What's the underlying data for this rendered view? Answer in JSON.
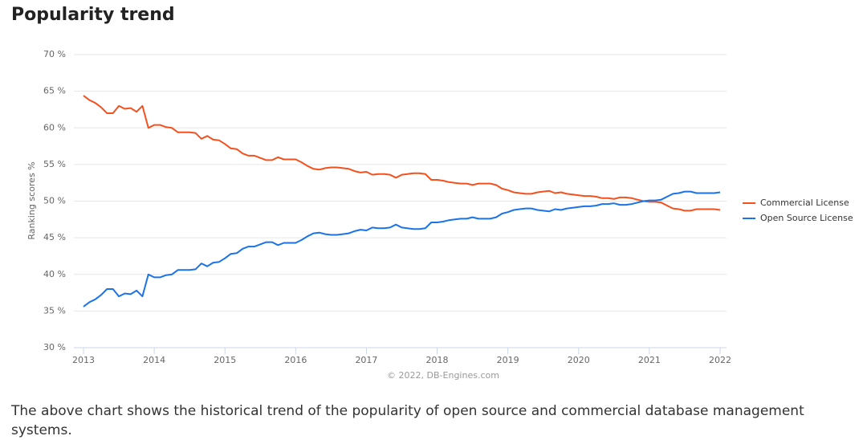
{
  "heading": "Popularity trend",
  "description": "The above chart shows the historical trend of the popularity of open source and commercial database management systems.",
  "chart_data": {
    "type": "line",
    "y_label": "Ranking scores %",
    "credit": "© 2022, DB-Engines.com",
    "x": [
      2013,
      2013.083,
      2013.167,
      2013.25,
      2013.333,
      2013.417,
      2013.5,
      2013.583,
      2013.667,
      2013.75,
      2013.833,
      2013.917,
      2014,
      2014.083,
      2014.167,
      2014.25,
      2014.333,
      2014.417,
      2014.5,
      2014.583,
      2014.667,
      2014.75,
      2014.833,
      2014.917,
      2015,
      2015.083,
      2015.167,
      2015.25,
      2015.333,
      2015.417,
      2015.5,
      2015.583,
      2015.667,
      2015.75,
      2015.833,
      2015.917,
      2016,
      2016.083,
      2016.167,
      2016.25,
      2016.333,
      2016.417,
      2016.5,
      2016.583,
      2016.667,
      2016.75,
      2016.833,
      2016.917,
      2017,
      2017.083,
      2017.167,
      2017.25,
      2017.333,
      2017.417,
      2017.5,
      2017.583,
      2017.667,
      2017.75,
      2017.833,
      2017.917,
      2018,
      2018.083,
      2018.167,
      2018.25,
      2018.333,
      2018.417,
      2018.5,
      2018.583,
      2018.667,
      2018.75,
      2018.833,
      2018.917,
      2019,
      2019.083,
      2019.167,
      2019.25,
      2019.333,
      2019.417,
      2019.5,
      2019.583,
      2019.667,
      2019.75,
      2019.833,
      2019.917,
      2020,
      2020.083,
      2020.167,
      2020.25,
      2020.333,
      2020.417,
      2020.5,
      2020.583,
      2020.667,
      2020.75,
      2020.833,
      2020.917,
      2021,
      2021.083,
      2021.167,
      2021.25,
      2021.333,
      2021.417,
      2021.5,
      2021.583,
      2021.667,
      2021.75,
      2021.833,
      2021.917,
      2022
    ],
    "series": [
      {
        "name": "Commercial License",
        "color": "#f4511e",
        "values": [
          64.4,
          63.8,
          63.4,
          62.8,
          62.0,
          62.0,
          63.0,
          62.6,
          62.7,
          62.2,
          63.0,
          60.0,
          60.4,
          60.4,
          60.1,
          60.0,
          59.4,
          59.4,
          59.4,
          59.3,
          58.5,
          58.9,
          58.4,
          58.3,
          57.8,
          57.2,
          57.1,
          56.5,
          56.2,
          56.2,
          55.9,
          55.6,
          55.6,
          56.0,
          55.7,
          55.7,
          55.7,
          55.3,
          54.8,
          54.4,
          54.3,
          54.5,
          54.6,
          54.6,
          54.5,
          54.4,
          54.1,
          53.9,
          54.0,
          53.6,
          53.7,
          53.7,
          53.6,
          53.2,
          53.6,
          53.7,
          53.8,
          53.8,
          53.7,
          52.9,
          52.9,
          52.8,
          52.6,
          52.5,
          52.4,
          52.4,
          52.2,
          52.4,
          52.4,
          52.4,
          52.2,
          51.7,
          51.5,
          51.2,
          51.1,
          51.0,
          51.0,
          51.2,
          51.3,
          51.4,
          51.1,
          51.2,
          51.0,
          50.9,
          50.8,
          50.7,
          50.7,
          50.6,
          50.4,
          50.4,
          50.3,
          50.5,
          50.5,
          50.4,
          50.2,
          50.0,
          49.9,
          49.9,
          49.8,
          49.4,
          49.0,
          48.9,
          48.7,
          48.7,
          48.9,
          48.9,
          48.9,
          48.9,
          48.8
        ]
      },
      {
        "name": "Open Source License",
        "color": "#1a73e8",
        "values": [
          35.6,
          36.2,
          36.6,
          37.2,
          38.0,
          38.0,
          37.0,
          37.4,
          37.3,
          37.8,
          37.0,
          40.0,
          39.6,
          39.6,
          39.9,
          40.0,
          40.6,
          40.6,
          40.6,
          40.7,
          41.5,
          41.1,
          41.6,
          41.7,
          42.2,
          42.8,
          42.9,
          43.5,
          43.8,
          43.8,
          44.1,
          44.4,
          44.4,
          44.0,
          44.3,
          44.3,
          44.3,
          44.7,
          45.2,
          45.6,
          45.7,
          45.5,
          45.4,
          45.4,
          45.5,
          45.6,
          45.9,
          46.1,
          46.0,
          46.4,
          46.3,
          46.3,
          46.4,
          46.8,
          46.4,
          46.3,
          46.2,
          46.2,
          46.3,
          47.1,
          47.1,
          47.2,
          47.4,
          47.5,
          47.6,
          47.6,
          47.8,
          47.6,
          47.6,
          47.6,
          47.8,
          48.3,
          48.5,
          48.8,
          48.9,
          49.0,
          49.0,
          48.8,
          48.7,
          48.6,
          48.9,
          48.8,
          49.0,
          49.1,
          49.2,
          49.3,
          49.3,
          49.4,
          49.6,
          49.6,
          49.7,
          49.5,
          49.5,
          49.6,
          49.8,
          50.0,
          50.1,
          50.1,
          50.2,
          50.6,
          51.0,
          51.1,
          51.3,
          51.3,
          51.1,
          51.1,
          51.1,
          51.1,
          51.2
        ]
      }
    ],
    "xlim": [
      2013,
      2022
    ],
    "xticks": [
      2013,
      2014,
      2015,
      2016,
      2017,
      2018,
      2019,
      2020,
      2021,
      2022
    ],
    "ylim": [
      30,
      70
    ],
    "yticks": [
      {
        "value": 30,
        "label": "30 %"
      },
      {
        "value": 35,
        "label": "35 %"
      },
      {
        "value": 40,
        "label": "40 %"
      },
      {
        "value": 45,
        "label": "45 %"
      },
      {
        "value": 50,
        "label": "50 %"
      },
      {
        "value": 55,
        "label": "55 %"
      },
      {
        "value": 60,
        "label": "60 %"
      },
      {
        "value": 65,
        "label": "65 %"
      },
      {
        "value": 70,
        "label": "70 %"
      }
    ],
    "grid": true,
    "legend": "right"
  }
}
